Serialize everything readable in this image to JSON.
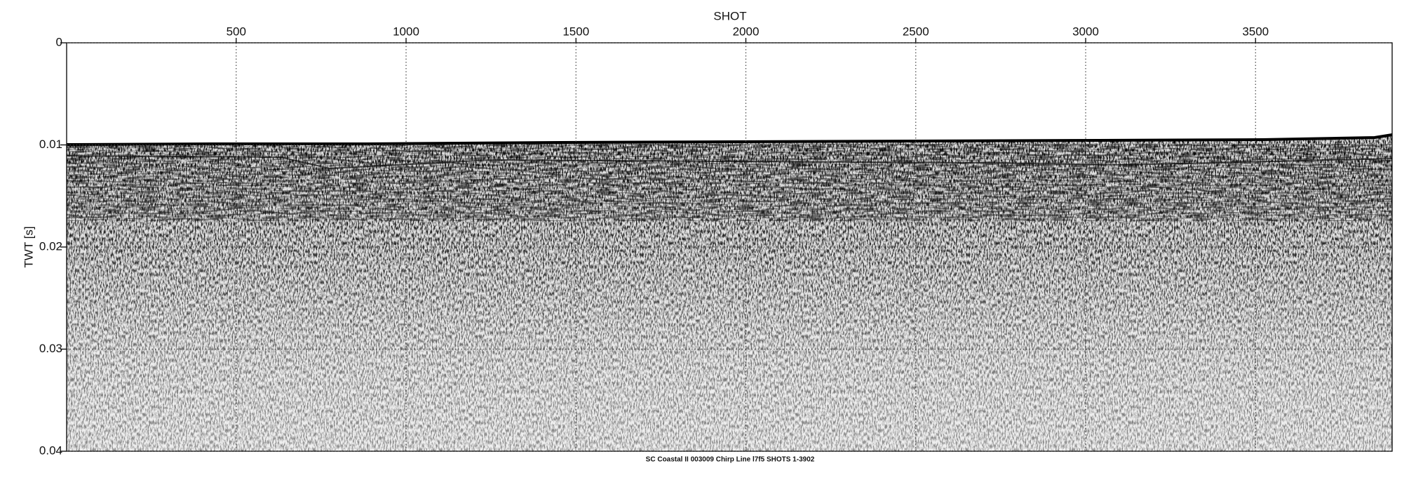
{
  "chart_data": {
    "type": "seismic",
    "xlabel": "SHOT",
    "ylabel": "TWT [s]",
    "caption": "SC Coastal II 003009 Chirp Line l7f5 SHOTS 1-3902",
    "xlim": [
      1,
      3902
    ],
    "xticks": [
      500,
      1000,
      1500,
      2000,
      2500,
      3000,
      3500
    ],
    "x_axis_position": "top",
    "ylim": [
      0,
      0.04
    ],
    "yticks": [
      0,
      0.01,
      0.02,
      0.03,
      0.04
    ],
    "y_inverted": true,
    "grid": true
  }
}
